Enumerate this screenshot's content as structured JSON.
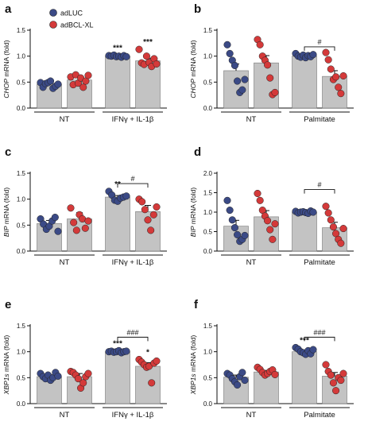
{
  "legend": [
    {
      "label": "adLUC",
      "color": "#3b4a86"
    },
    {
      "label": "adBCL-XL",
      "color": "#d43a3a"
    }
  ],
  "bar_color": "#c3c3c3",
  "chart_data": [
    {
      "type": "bar",
      "letter": "a",
      "title": "",
      "ylabel_gene": "CHOP",
      "ylabel_suffix": " mRNA (fold)",
      "ylim": [
        0,
        1.5
      ],
      "yticks": [
        "0.0",
        "0.5",
        "1.0",
        "1.5"
      ],
      "categories": [
        "NT",
        "IFNγ + IL-1β"
      ],
      "series": [
        {
          "name": "adLUC",
          "values": [
            0.46,
            1.0
          ],
          "errors": [
            0.04,
            0.01
          ],
          "points": [
            [
              0.49,
              0.4,
              0.47,
              0.49,
              0.52,
              0.38,
              0.42,
              0.46
            ],
            [
              1.01,
              1.0,
              1.02,
              0.99,
              1.0,
              0.98,
              1.01,
              0.99
            ]
          ]
        },
        {
          "name": "adBCL-XL",
          "values": [
            0.54,
            0.91
          ],
          "errors": [
            0.06,
            0.05
          ],
          "points": [
            [
              0.6,
              0.45,
              0.64,
              0.48,
              0.58,
              0.4,
              0.52,
              0.63
            ],
            [
              1.13,
              0.87,
              0.84,
              1.0,
              0.88,
              0.8,
              0.95,
              0.85
            ]
          ]
        }
      ],
      "annotations": [
        {
          "type": "stars",
          "text": "***",
          "category": 1,
          "series": 0
        },
        {
          "type": "stars",
          "text": "***",
          "category": 1,
          "series": 1
        }
      ]
    },
    {
      "type": "bar",
      "letter": "b",
      "title": "",
      "ylabel_gene": "CHOP",
      "ylabel_suffix": " mRNA (fold)",
      "ylim": [
        0,
        1.5
      ],
      "yticks": [
        "0.0",
        "0.5",
        "1.0",
        "1.5"
      ],
      "categories": [
        "NT",
        "Palmitate"
      ],
      "series": [
        {
          "name": "adLUC",
          "values": [
            0.72,
            1.0
          ],
          "errors": [
            0.13,
            0.02
          ],
          "points": [
            [
              1.22,
              1.05,
              0.92,
              0.82,
              0.52,
              0.3,
              0.35,
              0.55
            ],
            [
              1.05,
              1.0,
              0.98,
              1.02,
              0.97,
              1.01,
              0.99,
              1.03
            ]
          ]
        },
        {
          "name": "adBCL-XL",
          "values": [
            0.87,
            0.61
          ],
          "errors": [
            0.14,
            0.11
          ],
          "points": [
            [
              1.32,
              1.22,
              1.0,
              0.92,
              0.83,
              0.58,
              0.26,
              0.3
            ],
            [
              1.07,
              0.93,
              0.75,
              0.55,
              0.6,
              0.4,
              0.28,
              0.62
            ]
          ]
        }
      ],
      "annotations": [
        {
          "type": "bracket",
          "text": "#",
          "from": [
            1,
            0
          ],
          "to": [
            1,
            1
          ],
          "y": 1.18
        }
      ]
    },
    {
      "type": "bar",
      "letter": "c",
      "title": "",
      "ylabel_gene": "BIP",
      "ylabel_suffix": " mRNA (fold)",
      "ylim": [
        0,
        1.5
      ],
      "yticks": [
        "0.0",
        "0.5",
        "1.0",
        "1.5"
      ],
      "categories": [
        "NT",
        "IFNγ + IL-1β"
      ],
      "series": [
        {
          "name": "adLUC",
          "values": [
            0.53,
            1.04
          ],
          "errors": [
            0.06,
            0.03
          ],
          "points": [
            [
              0.62,
              0.52,
              0.42,
              0.48,
              0.58,
              0.65,
              0.38
            ],
            [
              1.15,
              1.08,
              0.98,
              0.96,
              1.02,
              1.04,
              1.06
            ]
          ]
        },
        {
          "name": "adBCL-XL",
          "values": [
            0.62,
            0.76
          ],
          "errors": [
            0.12,
            0.12
          ],
          "points": [
            [
              0.83,
              0.55,
              0.4,
              0.7,
              0.62,
              0.44,
              0.58
            ],
            [
              1.0,
              0.95,
              0.8,
              0.6,
              0.4,
              0.7,
              0.85
            ]
          ]
        }
      ],
      "annotations": [
        {
          "type": "stars",
          "text": "**",
          "category": 1,
          "series": 0
        },
        {
          "type": "bracket",
          "text": "#",
          "from": [
            1,
            0
          ],
          "to": [
            1,
            1
          ],
          "y": 1.3
        }
      ]
    },
    {
      "type": "bar",
      "letter": "d",
      "title": "",
      "ylabel_gene": "BIP",
      "ylabel_suffix": " mRNA (fold)",
      "ylim": [
        0,
        2.0
      ],
      "yticks": [
        "0.0",
        "0.5",
        "1.0",
        "1.5",
        "2.0"
      ],
      "categories": [
        "NT",
        "Palmitate"
      ],
      "series": [
        {
          "name": "adLUC",
          "values": [
            0.64,
            1.0
          ],
          "errors": [
            0.15,
            0.02
          ],
          "points": [
            [
              1.3,
              1.05,
              0.8,
              0.6,
              0.42,
              0.25,
              0.3,
              0.4
            ],
            [
              1.02,
              0.98,
              1.0,
              1.01,
              0.99,
              0.97,
              1.03,
              1.0
            ]
          ]
        },
        {
          "name": "adBCL-XL",
          "values": [
            0.88,
            0.6
          ],
          "errors": [
            0.16,
            0.14
          ],
          "points": [
            [
              1.48,
              1.3,
              1.05,
              0.9,
              0.78,
              0.55,
              0.3,
              0.7
            ],
            [
              1.15,
              0.98,
              0.8,
              0.62,
              0.45,
              0.3,
              0.2,
              0.58
            ]
          ]
        }
      ],
      "annotations": [
        {
          "type": "bracket",
          "text": "#",
          "from": [
            1,
            0
          ],
          "to": [
            1,
            1
          ],
          "y": 1.58
        }
      ]
    },
    {
      "type": "bar",
      "letter": "e",
      "title": "",
      "ylabel_gene": "XBP1s",
      "ylabel_suffix": " mRNA (fold)",
      "ylim": [
        0,
        1.5
      ],
      "yticks": [
        "0.0",
        "0.5",
        "1.0",
        "1.5"
      ],
      "categories": [
        "NT",
        "IFNγ + IL-1β"
      ],
      "series": [
        {
          "name": "adLUC",
          "values": [
            0.52,
            1.0
          ],
          "errors": [
            0.03,
            0.01
          ],
          "points": [
            [
              0.58,
              0.52,
              0.48,
              0.55,
              0.45,
              0.5,
              0.6,
              0.53
            ],
            [
              1.0,
              1.01,
              0.99,
              1.0,
              1.02,
              0.98,
              1.0,
              1.01
            ]
          ]
        },
        {
          "name": "adBCL-XL",
          "values": [
            0.52,
            0.72
          ],
          "errors": [
            0.06,
            0.07
          ],
          "points": [
            [
              0.62,
              0.6,
              0.55,
              0.48,
              0.3,
              0.4,
              0.52,
              0.58
            ],
            [
              0.85,
              0.8,
              0.75,
              0.7,
              0.72,
              0.4,
              0.78,
              0.82
            ]
          ]
        }
      ],
      "annotations": [
        {
          "type": "stars",
          "text": "***",
          "category": 1,
          "series": 0
        },
        {
          "type": "stars",
          "text": "*",
          "category": 1,
          "series": 1
        },
        {
          "type": "bracket",
          "text": "###",
          "from": [
            1,
            0
          ],
          "to": [
            1,
            1
          ],
          "y": 1.28
        }
      ]
    },
    {
      "type": "bar",
      "letter": "f",
      "title": "",
      "ylabel_gene": "XBP1s",
      "ylabel_suffix": " mRNA (fold)",
      "ylim": [
        0,
        1.5
      ],
      "yticks": [
        "0.0",
        "0.5",
        "1.0",
        "1.5"
      ],
      "categories": [
        "NT",
        "Palmitate"
      ],
      "series": [
        {
          "name": "adLUC",
          "values": [
            0.51,
            1.0
          ],
          "errors": [
            0.04,
            0.02
          ],
          "points": [
            [
              0.58,
              0.55,
              0.48,
              0.42,
              0.36,
              0.52,
              0.6,
              0.45
            ],
            [
              1.08,
              1.05,
              1.0,
              0.98,
              0.95,
              1.02,
              0.96,
              1.04
            ]
          ]
        },
        {
          "name": "adBCL-XL",
          "values": [
            0.61,
            0.53
          ],
          "errors": [
            0.03,
            0.07
          ],
          "points": [
            [
              0.7,
              0.66,
              0.6,
              0.55,
              0.58,
              0.62,
              0.65,
              0.56
            ],
            [
              0.75,
              0.62,
              0.55,
              0.4,
              0.25,
              0.5,
              0.45,
              0.58
            ]
          ]
        }
      ],
      "annotations": [
        {
          "type": "stars",
          "text": "***",
          "category": 1,
          "series": 0
        },
        {
          "type": "bracket",
          "text": "###",
          "from": [
            1,
            0
          ],
          "to": [
            1,
            1
          ],
          "y": 1.28
        }
      ]
    }
  ]
}
